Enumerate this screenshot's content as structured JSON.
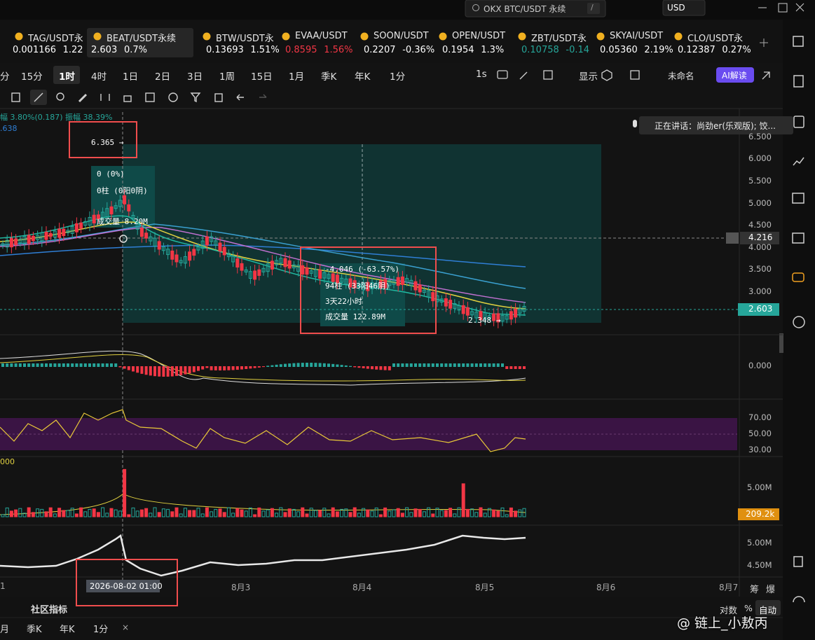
{
  "top_bar": {
    "search": "OKX BTC/USDT 永续",
    "shortcut": "/",
    "currency": "USD"
  },
  "tickers": [
    {
      "symbol": "TAG/USDT永",
      "price": "0.001166",
      "change": "1.22"
    },
    {
      "symbol": "BEAT/USDT永续",
      "price": "2.603",
      "change": "0.7%"
    },
    {
      "symbol": "BTW/USDT永",
      "price": "0.13693",
      "change": "1.51%"
    },
    {
      "symbol": "EVAA/USDT",
      "price": "0.8595",
      "change": "1.56%"
    },
    {
      "symbol": "SOON/USDT",
      "price": "0.2207",
      "change": "-0.36%"
    },
    {
      "symbol": "OPEN/USDT",
      "price": "0.1954",
      "change": "1.3%"
    },
    {
      "symbol": "ZBT/USDT永",
      "price": "0.10758",
      "change": "-0.14"
    },
    {
      "symbol": "SKYAI/USDT",
      "price": "0.05360",
      "change": "2.19%"
    },
    {
      "symbol": "CLO/USDT永",
      "price": "0.12387",
      "change": "0.27%"
    }
  ],
  "timeframes": [
    "分",
    "15分",
    "1时",
    "4时",
    "1日",
    "2日",
    "3日",
    "1周",
    "15日",
    "1月",
    "季K",
    "年K",
    "1分"
  ],
  "toolbar_right": {
    "seconds": "1s",
    "display": "显示",
    "layout": "未命名",
    "ai": "AI解读"
  },
  "chart": {
    "info": "幅 3.80%(0.187) 振幅 38.39%",
    "info_ma": ".638",
    "voice": "正在讲话：尚劲er(乐观版); 饺...",
    "price_axis": [
      "6.500",
      "6.000",
      "5.500",
      "5.000",
      "4.500",
      "4.000",
      "3.500",
      "3.000"
    ],
    "crosshair_price": "4.216",
    "last_price": "2.603",
    "macd_axis": "0.000",
    "rsi_axis": [
      "70.00",
      "50.00",
      "30.00"
    ],
    "volume_axis": "5.00M",
    "volume_last": "209.2k",
    "volume_label": "000",
    "oi_axis": [
      "5.00M",
      "4.50M"
    ],
    "high_marker": "6.365 →",
    "low_marker": "2.348 →",
    "measure_start": [
      "0 (0%)",
      "0柱 (0阳0阴)",
      "成交量 8.20M"
    ],
    "measure_end": [
      "-4.046 (-63.57%)",
      "94柱 (33阳46阴)",
      "3天22小时",
      "成交量 122.89M"
    ],
    "x_axis": [
      "1",
      "8月3",
      "8月4",
      "8月5",
      "8月6",
      "8月7"
    ],
    "crosshair_time": "2026-08-02 01:00",
    "side_tabs": [
      "筹",
      "爆"
    ]
  },
  "bottom_bar": {
    "indicators": "社区指标",
    "timeframes": [
      "月",
      "季K",
      "年K",
      "1分"
    ],
    "close": "×",
    "log": "对数",
    "percent": "%",
    "auto": "自动"
  },
  "watermark": "@ 链上_小敖丙"
}
